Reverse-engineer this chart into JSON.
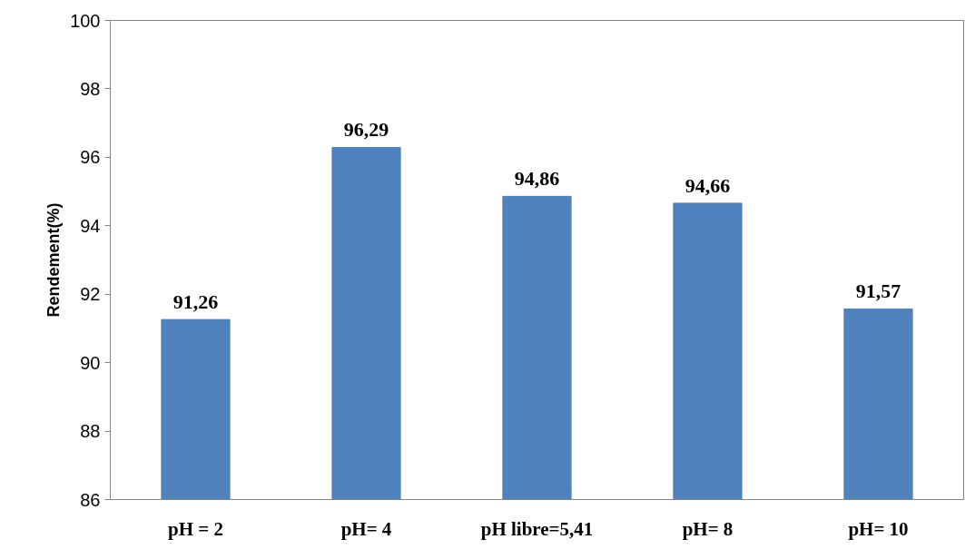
{
  "chart_data": {
    "type": "bar",
    "ylabel": "Rendement(%)",
    "categories": [
      "pH = 2",
      "pH= 4",
      "pH libre=5,41",
      "pH= 8",
      "pH= 10"
    ],
    "values": [
      91.26,
      96.29,
      94.86,
      94.66,
      91.57
    ],
    "value_labels": [
      "91,26",
      "96,29",
      "94,86",
      "94,66",
      "91,57"
    ],
    "color": "#4f81bd",
    "ylim": [
      86,
      100
    ],
    "yticks": [
      86,
      88,
      90,
      92,
      94,
      96,
      98,
      100
    ],
    "grid": false
  }
}
